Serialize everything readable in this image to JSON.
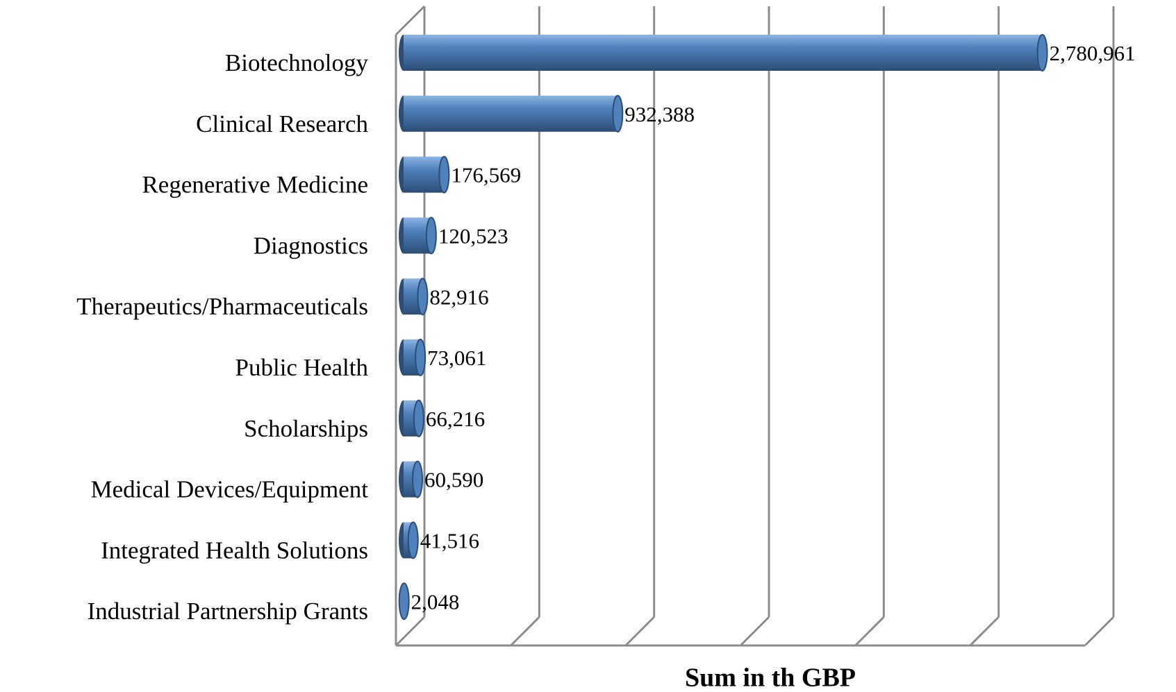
{
  "chart_data": {
    "type": "bar",
    "orientation": "horizontal",
    "x_label": "Sum in th GBP",
    "categories": [
      "Biotechnology",
      "Clinical Research",
      "Regenerative Medicine",
      "Diagnostics",
      "Therapeutics/Pharmaceuticals",
      "Public Health",
      "Scholarships",
      "Medical Devices/Equipment",
      "Integrated Health Solutions",
      "Industrial Partnership Grants"
    ],
    "values": [
      2780961,
      932388,
      176569,
      120523,
      82916,
      73061,
      66216,
      60590,
      41516,
      2048
    ],
    "value_labels": [
      "2,780,961",
      "932,388",
      "176,569",
      "120,523",
      "82,916",
      "73,061",
      "66,216",
      "60,590",
      "41,516",
      "2,048"
    ],
    "color": "#4f81bd",
    "xlim": [
      0,
      3000000
    ],
    "xticks": [
      0,
      500000,
      1000000,
      1500000,
      2000000,
      2500000,
      3000000
    ],
    "grid": true
  }
}
